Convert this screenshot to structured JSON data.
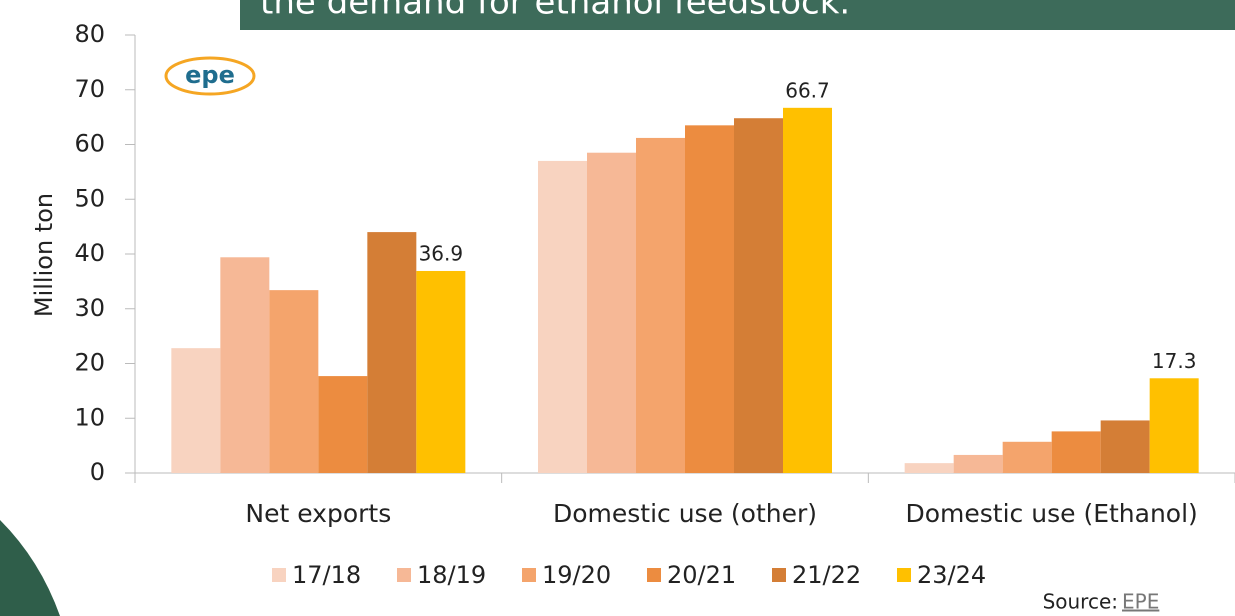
{
  "chart_data": {
    "type": "bar",
    "title": "the demand for ethanol feedstock.",
    "y_label": "Million ton",
    "categories": [
      "Net exports",
      "Domestic use (other)",
      "Domestic use (Ethanol)"
    ],
    "series": [
      {
        "name": "17/18",
        "color": "#f8d3c0",
        "values": [
          22.8,
          57.0,
          1.8
        ]
      },
      {
        "name": "18/19",
        "color": "#f6b896",
        "values": [
          39.4,
          58.5,
          3.3
        ]
      },
      {
        "name": "19/20",
        "color": "#f4a46c",
        "values": [
          33.4,
          61.2,
          5.7
        ]
      },
      {
        "name": "20/21",
        "color": "#ec8c40",
        "values": [
          17.7,
          63.5,
          7.6
        ]
      },
      {
        "name": "21/22",
        "color": "#d47e36",
        "values": [
          44.0,
          64.8,
          9.6
        ]
      },
      {
        "name": "23/24",
        "color": "#ffc000",
        "values": [
          36.9,
          66.7,
          17.3
        ],
        "data_labels": true
      }
    ],
    "ylim": [
      0,
      80
    ],
    "yticks": [
      0,
      10,
      20,
      30,
      40,
      50,
      60,
      70,
      80
    ],
    "legend": "bottom",
    "logo": "epe",
    "source": {
      "label": "Source:",
      "link": "EPE"
    }
  }
}
